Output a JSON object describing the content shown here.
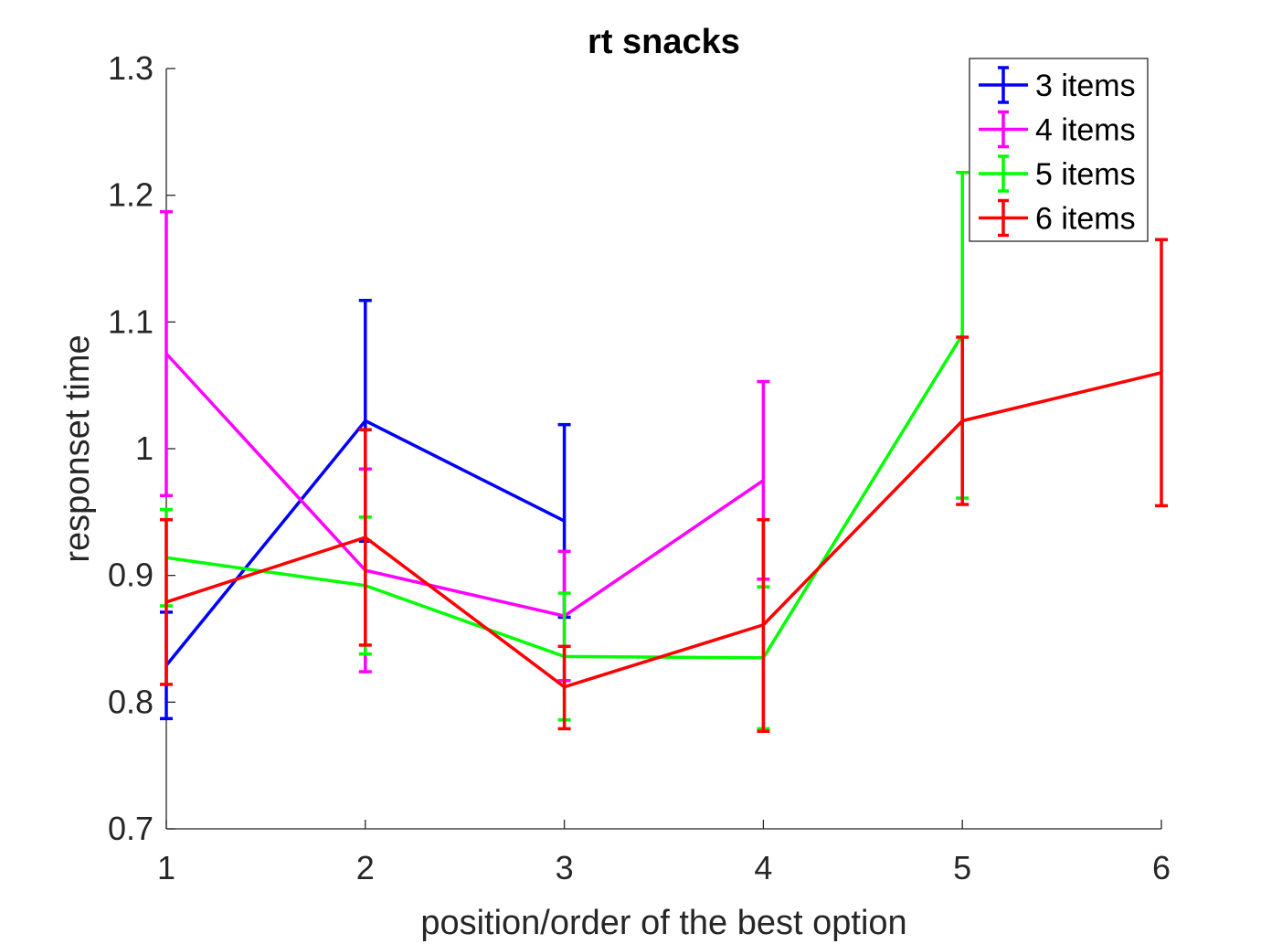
{
  "chart_data": {
    "type": "line",
    "title": "rt snacks",
    "xlabel": "position/order of the best option",
    "ylabel": "responset time",
    "xlim": [
      1,
      6
    ],
    "ylim": [
      0.7,
      1.3
    ],
    "xticks": [
      1,
      2,
      3,
      4,
      5,
      6
    ],
    "yticks": [
      0.7,
      0.8,
      0.9,
      1,
      1.1,
      1.2,
      1.3
    ],
    "xtick_labels": [
      "1",
      "2",
      "3",
      "4",
      "5",
      "6"
    ],
    "ytick_labels": [
      "0.7",
      "0.8",
      "0.9",
      "1",
      "1.1",
      "1.2",
      "1.3"
    ],
    "grid": false,
    "legend_position": "top-right",
    "series": [
      {
        "name": "3 items",
        "color": "#0000ff",
        "x": [
          1,
          2,
          3
        ],
        "y": [
          0.829,
          1.022,
          0.943
        ],
        "err_low": [
          0.787,
          0.927,
          0.867
        ],
        "err_high": [
          0.871,
          1.117,
          1.019
        ]
      },
      {
        "name": "4 items",
        "color": "#ff00ff",
        "x": [
          1,
          2,
          3,
          4
        ],
        "y": [
          1.075,
          0.904,
          0.868,
          0.975
        ],
        "err_low": [
          0.963,
          0.824,
          0.817,
          0.897
        ],
        "err_high": [
          1.187,
          0.984,
          0.919,
          1.053
        ]
      },
      {
        "name": "5 items",
        "color": "#00ff00",
        "x": [
          1,
          2,
          3,
          4,
          5
        ],
        "y": [
          0.914,
          0.892,
          0.836,
          0.835,
          1.09
        ],
        "err_low": [
          0.876,
          0.838,
          0.786,
          0.779,
          0.961
        ],
        "err_high": [
          0.952,
          0.946,
          0.886,
          0.891,
          1.218
        ]
      },
      {
        "name": "6 items",
        "color": "#ff0000",
        "x": [
          1,
          2,
          3,
          4,
          5,
          6
        ],
        "y": [
          0.879,
          0.93,
          0.812,
          0.861,
          1.022,
          1.06
        ],
        "err_low": [
          0.814,
          0.845,
          0.779,
          0.777,
          0.956,
          0.955
        ],
        "err_high": [
          0.944,
          1.015,
          0.844,
          0.944,
          1.088,
          1.165
        ]
      }
    ]
  }
}
